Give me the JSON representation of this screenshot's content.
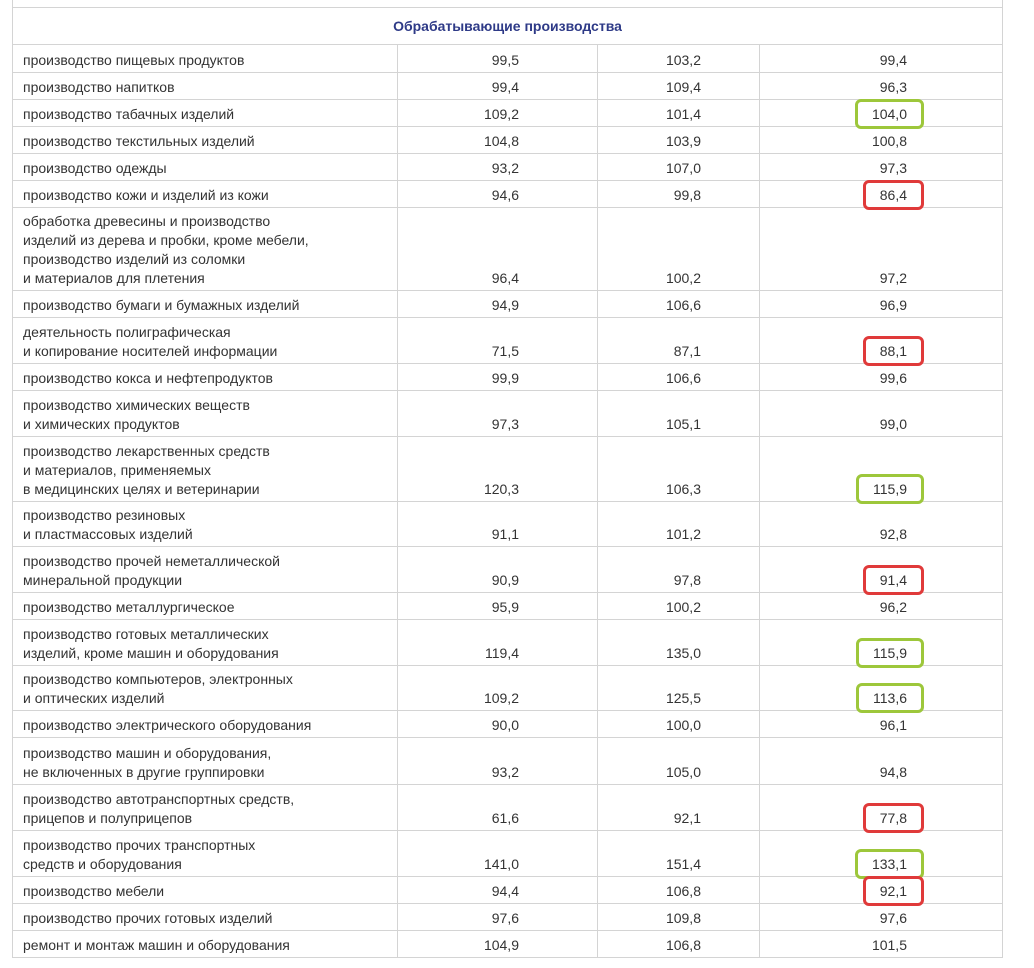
{
  "table": {
    "section_title": "Обрабатывающие производства",
    "rows": [
      {
        "label": "производство пищевых продуктов",
        "values": [
          "99,5",
          "103,2",
          "99,4"
        ]
      },
      {
        "label": "производство напитков",
        "values": [
          "99,4",
          "109,4",
          "96,3"
        ]
      },
      {
        "label": "производство табачных изделий",
        "values": [
          "109,2",
          "101,4",
          "104,0"
        ],
        "highlight": "#9dc73b"
      },
      {
        "label": "производство текстильных изделий",
        "values": [
          "104,8",
          "103,9",
          "100,8"
        ]
      },
      {
        "label": "производство одежды",
        "values": [
          "93,2",
          "107,0",
          "97,3"
        ]
      },
      {
        "label": "производство кожи и изделий из кожи",
        "values": [
          "94,6",
          "99,8",
          "86,4"
        ],
        "highlight": "#e03a3a"
      },
      {
        "label": "обработка древесины и производство\nизделий из дерева и пробки, кроме мебели,\nпроизводство изделий из соломки\nи материалов для плетения",
        "values": [
          "96,4",
          "100,2",
          "97,2"
        ]
      },
      {
        "label": "производство бумаги и бумажных изделий",
        "values": [
          "94,9",
          "106,6",
          "96,9"
        ]
      },
      {
        "label": "деятельность полиграфическая\nи копирование  носителей информации",
        "values": [
          "71,5",
          "87,1",
          "88,1"
        ],
        "highlight": "#e03a3a"
      },
      {
        "label": "производство кокса и нефтепродуктов",
        "values": [
          "99,9",
          "106,6",
          "99,6"
        ]
      },
      {
        "label": "производство химических веществ\nи химических продуктов",
        "values": [
          "97,3",
          "105,1",
          "99,0"
        ]
      },
      {
        "label": "производство лекарственных средств\nи материалов, применяемых\nв медицинских целях и ветеринарии",
        "values": [
          "120,3",
          "106,3",
          "115,9"
        ],
        "highlight": "#9dc73b"
      },
      {
        "label": "производство резиновых\nи пластмассовых изделий",
        "values": [
          "91,1",
          "101,2",
          "92,8"
        ]
      },
      {
        "label": "производство прочей  неметаллической\nминеральной продукции",
        "values": [
          "90,9",
          "97,8",
          "91,4"
        ],
        "highlight": "#e03a3a"
      },
      {
        "label": "производство металлургическое",
        "values": [
          "95,9",
          "100,2",
          "96,2"
        ]
      },
      {
        "label": "производство готовых металлических\nизделий, кроме машин и оборудования",
        "values": [
          "119,4",
          "135,0",
          "115,9"
        ],
        "highlight": "#9dc73b"
      },
      {
        "label": "производство компьютеров, электронных\nи оптических изделий",
        "values": [
          "109,2",
          "125,5",
          "113,6"
        ],
        "highlight": "#9dc73b"
      },
      {
        "label": "производство электрического оборудования",
        "values": [
          "90,0",
          "100,0",
          "96,1"
        ]
      },
      {
        "label": "производство машин и оборудования,\nне включенных в другие группировки",
        "values": [
          "93,2",
          "105,0",
          "94,8"
        ]
      },
      {
        "label": "производство автотранспортных средств,\nприцепов и полуприцепов",
        "values": [
          "61,6",
          "92,1",
          "77,8"
        ],
        "highlight": "#e03a3a"
      },
      {
        "label": "производство прочих транспортных\nсредств и оборудования",
        "values": [
          "141,0",
          "151,4",
          "133,1"
        ],
        "highlight": "#9dc73b"
      },
      {
        "label": "производство мебели",
        "values": [
          "94,4",
          "106,8",
          "92,1"
        ],
        "highlight": "#e03a3a"
      },
      {
        "label": "производство прочих готовых изделий",
        "values": [
          "97,6",
          "109,8",
          "97,6"
        ]
      },
      {
        "label": "ремонт и монтаж машин и оборудования",
        "values": [
          "104,9",
          "106,8",
          "101,5"
        ]
      }
    ]
  }
}
